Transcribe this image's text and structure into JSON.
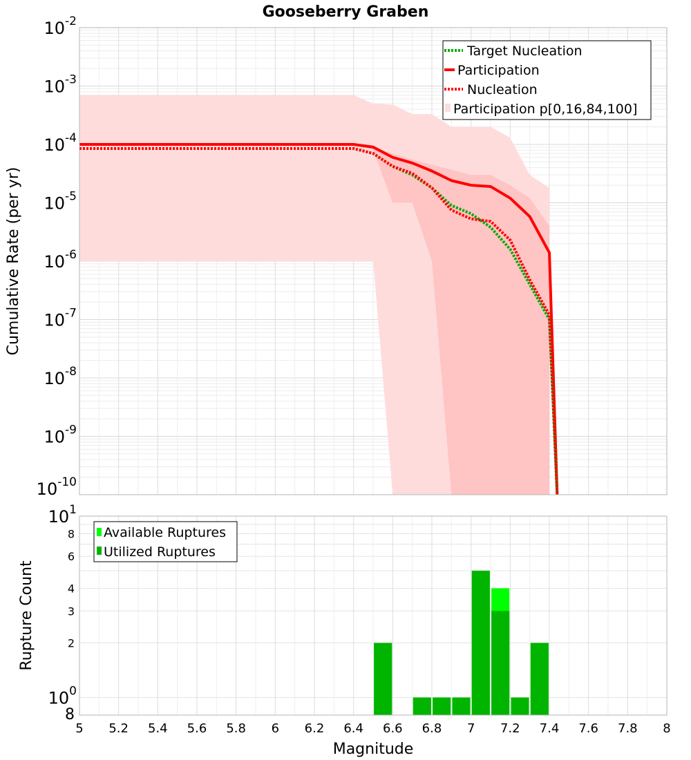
{
  "chart_data": [
    {
      "type": "line",
      "title": "Gooseberry Graben",
      "ylabel": "Cumulative Rate (per yr)",
      "xlim": [
        5,
        8
      ],
      "ylim": [
        1e-10,
        0.01
      ],
      "yscale": "log",
      "grid": true,
      "legend_position": "top-right",
      "y_ticks": [
        {
          "base": "10",
          "exp": "-2"
        },
        {
          "base": "10",
          "exp": "-3"
        },
        {
          "base": "10",
          "exp": "-4"
        },
        {
          "base": "10",
          "exp": "-5"
        },
        {
          "base": "10",
          "exp": "-6"
        },
        {
          "base": "10",
          "exp": "-7"
        },
        {
          "base": "10",
          "exp": "-8"
        },
        {
          "base": "10",
          "exp": "-9"
        },
        {
          "base": "10",
          "exp": "-10"
        }
      ],
      "bands": [
        {
          "name": "Participation p[0,16,84,100]",
          "kind": "p0-p100",
          "color": "#ffdcdc",
          "x": [
            5,
            6.4,
            6.5,
            6.6,
            6.7,
            6.8,
            6.9,
            7.0,
            7.1,
            7.2,
            7.3,
            7.4
          ],
          "upper": [
            0.0007,
            0.0007,
            0.0005,
            0.00048,
            0.00033,
            0.00033,
            0.0002,
            0.0002,
            0.0002,
            0.00013,
            3e-05,
            1.8e-05
          ],
          "lower": [
            1e-06,
            1e-06,
            1e-06,
            1e-10,
            1e-10,
            1e-10,
            1e-10,
            1e-10,
            1e-10,
            1e-10,
            1e-10,
            1e-10
          ]
        },
        {
          "kind": "p16-p84",
          "color": "#ffc4c4",
          "x": [
            5,
            6.4,
            6.5,
            6.6,
            6.7,
            6.8,
            6.9,
            7.0,
            7.1,
            7.2,
            7.3,
            7.4
          ],
          "upper": [
            0.0001,
            0.0001,
            9e-05,
            7e-05,
            5.5e-05,
            4.5e-05,
            3.7e-05,
            3e-05,
            3e-05,
            2e-05,
            1.2e-05,
            4e-06
          ],
          "lower": [
            0.0001,
            0.0001,
            8e-05,
            1e-05,
            1e-05,
            1e-06,
            1e-10,
            1e-10,
            1e-10,
            1e-10,
            1e-10,
            1e-10
          ]
        }
      ],
      "series": [
        {
          "name": "Target Nucleation",
          "color": "#00aa00",
          "style": "dotted",
          "x": [
            5,
            6.4,
            6.5,
            6.6,
            6.7,
            6.8,
            6.9,
            7.0,
            7.1,
            7.2,
            7.3,
            7.4,
            7.44
          ],
          "values": [
            8.5e-05,
            8.5e-05,
            7e-05,
            4.2e-05,
            3e-05,
            1.8e-05,
            9e-06,
            6.5e-06,
            3.8e-06,
            1.6e-06,
            4e-07,
            1e-07,
            1e-10
          ]
        },
        {
          "name": "Participation",
          "color": "#ff0000",
          "style": "solid",
          "x": [
            5,
            6.4,
            6.5,
            6.6,
            6.7,
            6.8,
            6.9,
            7.0,
            7.1,
            7.2,
            7.3,
            7.4,
            7.44
          ],
          "values": [
            0.0001,
            0.0001,
            9e-05,
            6e-05,
            4.8e-05,
            3.5e-05,
            2.4e-05,
            2e-05,
            1.9e-05,
            1.2e-05,
            5.8e-06,
            1.4e-06,
            1e-10
          ]
        },
        {
          "name": "Nucleation",
          "color": "#ff0000",
          "style": "dotted",
          "x": [
            5,
            6.4,
            6.5,
            6.6,
            6.7,
            6.8,
            6.9,
            7.0,
            7.1,
            7.2,
            7.3,
            7.4,
            7.44
          ],
          "values": [
            8.5e-05,
            8.5e-05,
            7e-05,
            4.2e-05,
            3.2e-05,
            1.8e-05,
            7.5e-06,
            5.3e-06,
            4.8e-06,
            2.3e-06,
            4.8e-07,
            1.2e-07,
            1e-10
          ]
        }
      ]
    },
    {
      "type": "bar",
      "xlabel": "Magnitude",
      "ylabel": "Rupture Count",
      "xlim": [
        5,
        8
      ],
      "ylim": [
        0.8,
        10
      ],
      "yscale": "log",
      "grid": true,
      "legend_position": "top-left",
      "bin_width": 0.1,
      "x_ticks": [
        "5",
        "5.2",
        "5.4",
        "5.6",
        "5.8",
        "6",
        "6.2",
        "6.4",
        "6.6",
        "6.8",
        "7",
        "7.2",
        "7.4",
        "7.6",
        "7.8",
        "8"
      ],
      "y_ticks": [
        {
          "value": 10,
          "base": "10",
          "exp": "1"
        },
        {
          "value": 8,
          "label": "8"
        },
        {
          "value": 6,
          "label": "6"
        },
        {
          "value": 4,
          "label": "4"
        },
        {
          "value": 3,
          "label": "3"
        },
        {
          "value": 2,
          "label": "2"
        },
        {
          "value": 1,
          "base": "10",
          "exp": "0"
        },
        {
          "value": 0.8,
          "label": "8"
        }
      ],
      "series": [
        {
          "name": "Available Ruptures",
          "color": "#00ff00",
          "x": [
            6.55,
            6.75,
            6.85,
            6.95,
            7.05,
            7.15,
            7.25,
            7.35
          ],
          "values": [
            2,
            1,
            1,
            1,
            5,
            4,
            1,
            2
          ]
        },
        {
          "name": "Utilized Ruptures",
          "color": "#00b400",
          "x": [
            6.55,
            6.75,
            6.85,
            6.95,
            7.05,
            7.15,
            7.25,
            7.35
          ],
          "values": [
            2,
            1,
            1,
            1,
            5,
            3,
            1,
            2
          ]
        }
      ]
    }
  ]
}
